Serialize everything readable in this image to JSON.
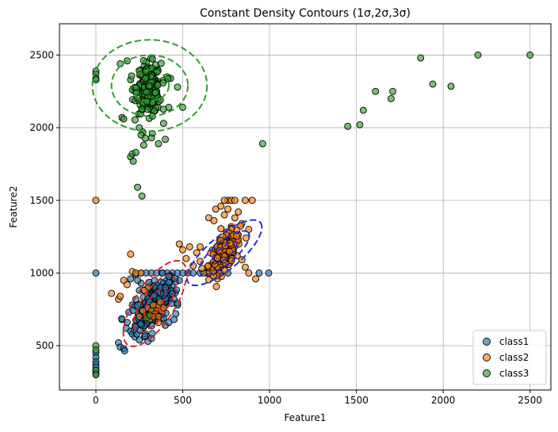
{
  "chart_data": {
    "type": "scatter",
    "title": "Constant Density Contours (1σ,2σ,3σ)",
    "xlabel": "Feature1",
    "ylabel": "Feature2",
    "xlim": [
      -210,
      2620
    ],
    "ylim": [
      195,
      2715
    ],
    "xticks": [
      0,
      500,
      1000,
      1500,
      2000,
      2500
    ],
    "yticks": [
      500,
      1000,
      1500,
      2000,
      2500
    ],
    "grid": true,
    "legend_position": "bottom-right",
    "series": [
      {
        "name": "class1",
        "color": "#1f77b4",
        "cluster": {
          "cx": 340,
          "cy": 790,
          "sx": 55,
          "sy": 90,
          "n": 220
        },
        "points": [
          [
            0,
            1000
          ],
          [
            0,
            450
          ],
          [
            0,
            420
          ],
          [
            0,
            390
          ],
          [
            0,
            370
          ],
          [
            0,
            350
          ],
          [
            0,
            330
          ],
          [
            0,
            310
          ],
          [
            130,
            520
          ],
          [
            140,
            490
          ],
          [
            160,
            480
          ],
          [
            165,
            465
          ],
          [
            150,
            680
          ],
          [
            180,
            660
          ],
          [
            175,
            620
          ],
          [
            200,
            600
          ],
          [
            210,
            580
          ],
          [
            225,
            560
          ],
          [
            250,
            540
          ],
          [
            300,
            530
          ],
          [
            320,
            550
          ],
          [
            280,
            560
          ],
          [
            190,
            730
          ],
          [
            210,
            780
          ],
          [
            230,
            820
          ],
          [
            250,
            880
          ],
          [
            260,
            930
          ],
          [
            240,
            950
          ],
          [
            200,
            960
          ],
          [
            230,
            990
          ],
          [
            260,
            1000
          ],
          [
            290,
            1000
          ],
          [
            320,
            1000
          ],
          [
            350,
            1000
          ],
          [
            380,
            1000
          ],
          [
            410,
            1000
          ],
          [
            440,
            1000
          ],
          [
            470,
            1000
          ],
          [
            500,
            1000
          ],
          [
            530,
            1000
          ],
          [
            560,
            1000
          ],
          [
            600,
            1000
          ],
          [
            640,
            1000
          ],
          [
            680,
            1000
          ],
          [
            720,
            1000
          ],
          [
            760,
            1000
          ],
          [
            940,
            1000
          ],
          [
            995,
            1000
          ],
          [
            420,
            900
          ],
          [
            430,
            850
          ],
          [
            450,
            820
          ],
          [
            470,
            780
          ],
          [
            460,
            940
          ],
          [
            480,
            950
          ],
          [
            440,
            960
          ],
          [
            400,
            640
          ],
          [
            420,
            660
          ],
          [
            450,
            680
          ],
          [
            460,
            720
          ]
        ]
      },
      {
        "name": "class2",
        "color": "#ff7f0e",
        "cluster": {
          "cx": 740,
          "cy": 1140,
          "sx": 45,
          "sy": 70,
          "n": 180
        },
        "points": [
          [
            0,
            1500
          ],
          [
            90,
            860
          ],
          [
            130,
            820
          ],
          [
            140,
            840
          ],
          [
            160,
            950
          ],
          [
            180,
            920
          ],
          [
            200,
            1130
          ],
          [
            210,
            1010
          ],
          [
            230,
            1000
          ],
          [
            260,
            1000
          ],
          [
            300,
            900
          ],
          [
            280,
            880
          ],
          [
            300,
            760
          ],
          [
            320,
            740
          ],
          [
            340,
            720
          ],
          [
            350,
            760
          ],
          [
            360,
            780
          ],
          [
            370,
            800
          ],
          [
            330,
            780
          ],
          [
            380,
            740
          ],
          [
            390,
            760
          ],
          [
            300,
            700
          ],
          [
            310,
            680
          ],
          [
            330,
            700
          ],
          [
            360,
            700
          ],
          [
            360,
            660
          ],
          [
            250,
            700
          ],
          [
            270,
            740
          ],
          [
            480,
            1200
          ],
          [
            500,
            1160
          ],
          [
            540,
            1180
          ],
          [
            520,
            1100
          ],
          [
            560,
            1050
          ],
          [
            600,
            1180
          ],
          [
            650,
            1380
          ],
          [
            680,
            1360
          ],
          [
            690,
            1440
          ],
          [
            720,
            1460
          ],
          [
            740,
            1400
          ],
          [
            760,
            1440
          ],
          [
            760,
            1500
          ],
          [
            780,
            1500
          ],
          [
            800,
            1500
          ],
          [
            740,
            1500
          ],
          [
            860,
            1500
          ],
          [
            900,
            1500
          ],
          [
            820,
            1420
          ],
          [
            800,
            1380
          ],
          [
            840,
            1340
          ],
          [
            780,
            1320
          ],
          [
            880,
            1300
          ],
          [
            920,
            960
          ],
          [
            880,
            1000
          ],
          [
            860,
            1040
          ],
          [
            650,
            1000
          ],
          [
            620,
            1000
          ],
          [
            700,
            960
          ],
          [
            600,
            1080
          ],
          [
            580,
            1140
          ]
        ]
      },
      {
        "name": "class3",
        "color": "#2ca02c",
        "cluster": {
          "cx": 305,
          "cy": 2270,
          "sx": 35,
          "sy": 85,
          "n": 200
        },
        "points": [
          [
            0,
            2390
          ],
          [
            0,
            2370
          ],
          [
            0,
            2340
          ],
          [
            0,
            2330
          ],
          [
            0,
            500
          ],
          [
            0,
            470
          ],
          [
            0,
            330
          ],
          [
            0,
            300
          ],
          [
            150,
            2070
          ],
          [
            160,
            2060
          ],
          [
            200,
            2330
          ],
          [
            210,
            2260
          ],
          [
            140,
            2440
          ],
          [
            180,
            2460
          ],
          [
            250,
            2000
          ],
          [
            270,
            1970
          ],
          [
            260,
            1950
          ],
          [
            200,
            1800
          ],
          [
            210,
            1820
          ],
          [
            230,
            1830
          ],
          [
            215,
            1770
          ],
          [
            240,
            1590
          ],
          [
            265,
            1530
          ],
          [
            275,
            1880
          ],
          [
            325,
            1960
          ],
          [
            320,
            1930
          ],
          [
            360,
            1890
          ],
          [
            400,
            1920
          ],
          [
            390,
            2030
          ],
          [
            420,
            2140
          ],
          [
            430,
            2340
          ],
          [
            410,
            2350
          ],
          [
            500,
            2140
          ],
          [
            470,
            2280
          ],
          [
            960,
            1890
          ],
          [
            1450,
            2010
          ],
          [
            1520,
            2020
          ],
          [
            1540,
            2120
          ],
          [
            1610,
            2250
          ],
          [
            1700,
            2200
          ],
          [
            1710,
            2250
          ],
          [
            1870,
            2480
          ],
          [
            1940,
            2300
          ],
          [
            2045,
            2285
          ],
          [
            2200,
            2500
          ],
          [
            2500,
            2500
          ],
          [
            290,
            690
          ],
          [
            310,
            710
          ]
        ]
      }
    ],
    "contours": [
      {
        "series": "class1",
        "color": "#d62728",
        "cx": 340,
        "cy": 790,
        "angle": -57,
        "levels": [
          {
            "sigma": 1,
            "a": 95,
            "b": 45
          },
          {
            "sigma": 2,
            "a": 190,
            "b": 90
          },
          {
            "sigma": 3,
            "a": 285,
            "b": 135
          }
        ]
      },
      {
        "series": "class2",
        "color": "#2b2bd6",
        "cx": 740,
        "cy": 1140,
        "angle": -40,
        "levels": [
          {
            "sigma": 1,
            "a": 90,
            "b": 38
          },
          {
            "sigma": 2,
            "a": 180,
            "b": 76
          },
          {
            "sigma": 3,
            "a": 270,
            "b": 114
          }
        ]
      },
      {
        "series": "class3",
        "color": "#2ca02c",
        "cx": 310,
        "cy": 2290,
        "angle": 0,
        "levels": [
          {
            "sigma": 1,
            "a": 110,
            "b": 105
          },
          {
            "sigma": 2,
            "a": 220,
            "b": 210
          },
          {
            "sigma": 3,
            "a": 330,
            "b": 315
          }
        ]
      }
    ]
  }
}
